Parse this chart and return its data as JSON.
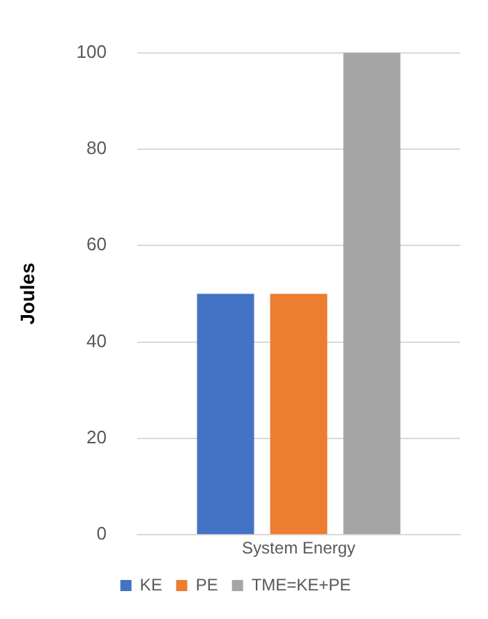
{
  "chart_data": {
    "type": "bar",
    "ylabel": "Joules",
    "categories": [
      "System Energy"
    ],
    "series": [
      {
        "name": "KE",
        "color": "#4472c4",
        "values": [
          50
        ]
      },
      {
        "name": "PE",
        "color": "#ed7d31",
        "values": [
          50
        ]
      },
      {
        "name": "TME=KE+PE",
        "color": "#a5a5a5",
        "values": [
          100
        ]
      }
    ],
    "ylim": [
      0,
      100
    ],
    "yticks": [
      0,
      20,
      40,
      60,
      80,
      100
    ],
    "grid": "y",
    "legend": "bottom"
  }
}
